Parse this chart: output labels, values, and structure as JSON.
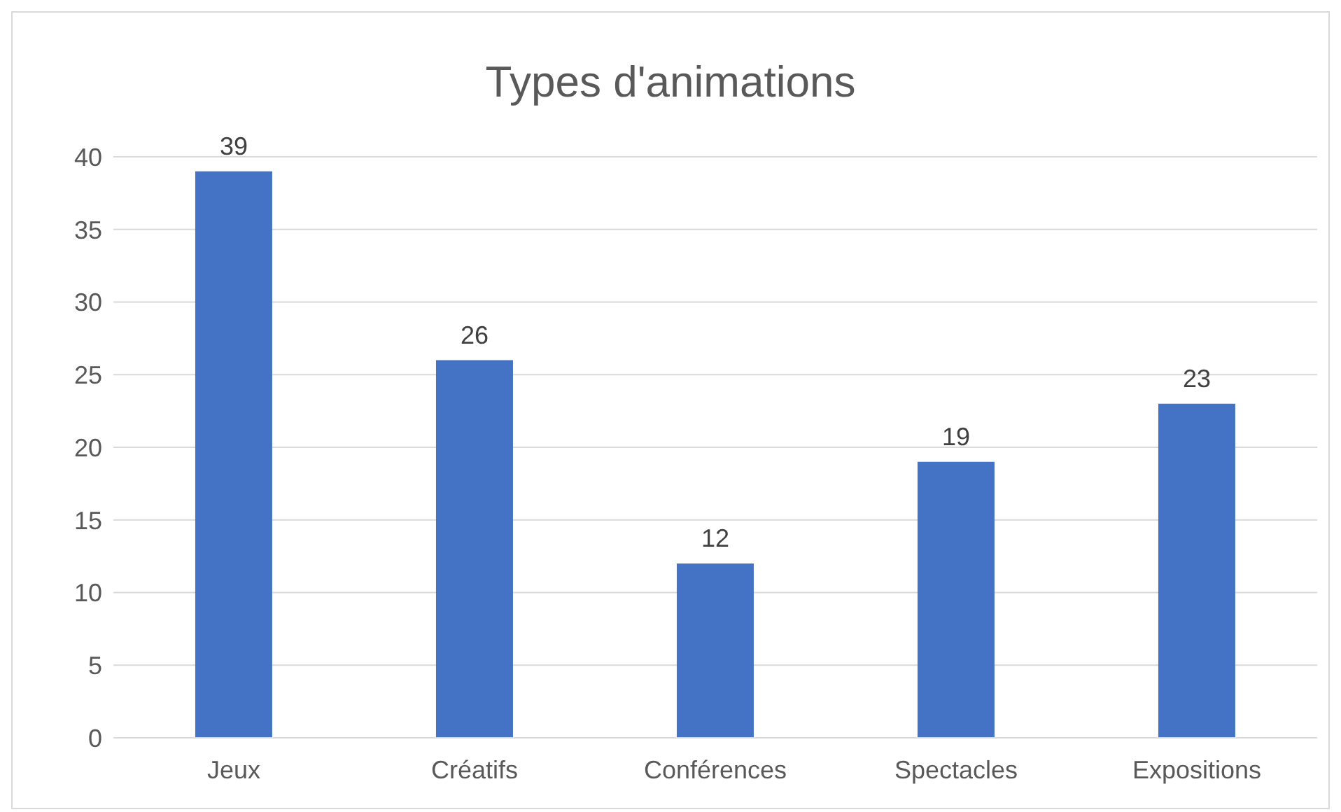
{
  "chart_data": {
    "type": "bar",
    "title": "Types d'animations",
    "categories": [
      "Jeux",
      "Créatifs",
      "Conférences",
      "Spectacles",
      "Expositions"
    ],
    "values": [
      39,
      26,
      12,
      19,
      23
    ],
    "color": "#4472c4",
    "ylim": [
      0,
      40
    ],
    "yticks": [
      0,
      5,
      10,
      15,
      20,
      25,
      30,
      35,
      40
    ],
    "grid": "y",
    "data_labels": true,
    "legend": false
  }
}
